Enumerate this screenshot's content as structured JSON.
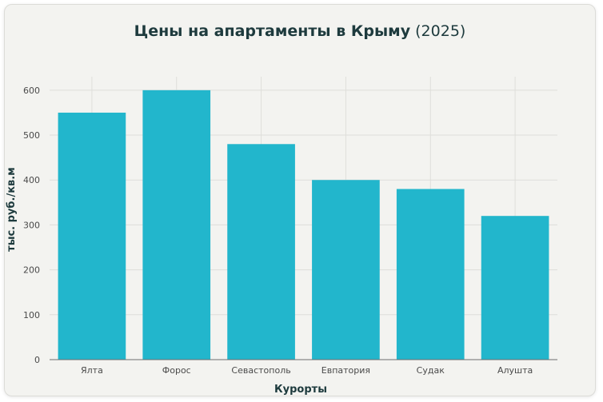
{
  "chart_data": {
    "type": "bar",
    "title": "Цены на апартаменты в Крыму",
    "title_suffix": "(2025)",
    "categories": [
      "Ялта",
      "Форос",
      "Севастополь",
      "Евпатория",
      "Судак",
      "Алушта"
    ],
    "values": [
      550,
      600,
      480,
      400,
      380,
      320
    ],
    "xlabel": "Курорты",
    "ylabel": "тыс. руб./кв.м",
    "ylim": [
      0,
      630
    ],
    "yticks": [
      0,
      100,
      200,
      300,
      400,
      500,
      600
    ],
    "grid": true,
    "legend": "none",
    "bar_color": "#22b6cc"
  }
}
